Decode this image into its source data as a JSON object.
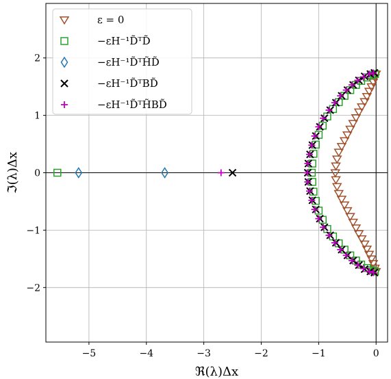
{
  "chart_data": {
    "type": "scatter",
    "title": "",
    "xlabel": "ℜ(λ)Δx",
    "ylabel": "ℑ(λ)Δx",
    "xlim": [
      -5.75,
      0.2
    ],
    "ylim": [
      -2.95,
      2.95
    ],
    "xticks": [
      -5,
      -4,
      -3,
      -2,
      -1,
      0
    ],
    "xtick_labels": [
      "−5",
      "−4",
      "−3",
      "−2",
      "−1",
      "0"
    ],
    "yticks": [
      -2,
      -1,
      0,
      1,
      2
    ],
    "ytick_labels": [
      "−2",
      "−1",
      "0",
      "1",
      "2"
    ],
    "grid": true,
    "zero_lines": true,
    "legend_position": "top-left",
    "series": [
      {
        "name": "ε = 0",
        "marker": "triangle-down",
        "color": "#a0522d",
        "points": [
          [
            0.0,
            1.72
          ],
          [
            -0.02,
            1.66
          ],
          [
            -0.05,
            1.58
          ],
          [
            -0.08,
            1.5
          ],
          [
            -0.12,
            1.42
          ],
          [
            -0.16,
            1.33
          ],
          [
            -0.2,
            1.24
          ],
          [
            -0.25,
            1.15
          ],
          [
            -0.3,
            1.06
          ],
          [
            -0.35,
            0.96
          ],
          [
            -0.4,
            0.86
          ],
          [
            -0.45,
            0.76
          ],
          [
            -0.5,
            0.66
          ],
          [
            -0.55,
            0.56
          ],
          [
            -0.6,
            0.46
          ],
          [
            -0.65,
            0.36
          ],
          [
            -0.68,
            0.24
          ],
          [
            -0.7,
            0.12
          ],
          [
            -0.71,
            0.0
          ],
          [
            -0.7,
            -0.12
          ],
          [
            -0.68,
            -0.24
          ],
          [
            -0.65,
            -0.36
          ],
          [
            -0.6,
            -0.46
          ],
          [
            -0.55,
            -0.56
          ],
          [
            -0.5,
            -0.66
          ],
          [
            -0.45,
            -0.76
          ],
          [
            -0.4,
            -0.86
          ],
          [
            -0.35,
            -0.96
          ],
          [
            -0.3,
            -1.06
          ],
          [
            -0.25,
            -1.15
          ],
          [
            -0.2,
            -1.24
          ],
          [
            -0.16,
            -1.33
          ],
          [
            -0.12,
            -1.42
          ],
          [
            -0.08,
            -1.5
          ],
          [
            -0.05,
            -1.58
          ],
          [
            -0.02,
            -1.66
          ],
          [
            0.0,
            -1.72
          ]
        ]
      },
      {
        "name": "−εH⁻¹D̃ᵀD̃",
        "marker": "square",
        "color": "#2ca02c",
        "points": [
          [
            -5.55,
            0.0
          ],
          [
            -0.02,
            1.72
          ],
          [
            -0.08,
            1.7
          ],
          [
            -0.16,
            1.66
          ],
          [
            -0.26,
            1.6
          ],
          [
            -0.35,
            1.53
          ],
          [
            -0.45,
            1.44
          ],
          [
            -0.55,
            1.34
          ],
          [
            -0.65,
            1.23
          ],
          [
            -0.75,
            1.11
          ],
          [
            -0.85,
            0.98
          ],
          [
            -0.93,
            0.82
          ],
          [
            -1.0,
            0.66
          ],
          [
            -1.05,
            0.49
          ],
          [
            -1.09,
            0.33
          ],
          [
            -1.11,
            0.16
          ],
          [
            -1.12,
            0.0
          ],
          [
            -1.11,
            -0.16
          ],
          [
            -1.09,
            -0.33
          ],
          [
            -1.05,
            -0.49
          ],
          [
            -1.0,
            -0.66
          ],
          [
            -0.93,
            -0.82
          ],
          [
            -0.85,
            -0.98
          ],
          [
            -0.75,
            -1.11
          ],
          [
            -0.65,
            -1.23
          ],
          [
            -0.55,
            -1.34
          ],
          [
            -0.45,
            -1.44
          ],
          [
            -0.35,
            -1.53
          ],
          [
            -0.26,
            -1.6
          ],
          [
            -0.16,
            -1.66
          ],
          [
            -0.08,
            -1.7
          ],
          [
            -0.02,
            -1.72
          ]
        ]
      },
      {
        "name": "−εH⁻¹D̃ᵀH̃D̃",
        "marker": "diamond",
        "color": "#1f77b4",
        "points": [
          [
            -5.18,
            0.0
          ],
          [
            -3.68,
            0.0
          ]
        ]
      },
      {
        "name": "−εH⁻¹D̃ᵀBD̃",
        "marker": "x",
        "color": "#000000",
        "points": [
          [
            -2.5,
            0.0
          ],
          [
            -0.03,
            1.74
          ],
          [
            -0.1,
            1.72
          ],
          [
            -0.2,
            1.68
          ],
          [
            -0.3,
            1.61
          ],
          [
            -0.4,
            1.53
          ],
          [
            -0.5,
            1.44
          ],
          [
            -0.6,
            1.34
          ],
          [
            -0.7,
            1.22
          ],
          [
            -0.8,
            1.09
          ],
          [
            -0.9,
            0.95
          ],
          [
            -0.98,
            0.8
          ],
          [
            -1.05,
            0.64
          ],
          [
            -1.11,
            0.48
          ],
          [
            -1.15,
            0.32
          ],
          [
            -1.18,
            0.16
          ],
          [
            -1.19,
            0.0
          ],
          [
            -1.18,
            -0.16
          ],
          [
            -1.15,
            -0.32
          ],
          [
            -1.11,
            -0.48
          ],
          [
            -1.05,
            -0.64
          ],
          [
            -0.98,
            -0.8
          ],
          [
            -0.9,
            -0.95
          ],
          [
            -0.8,
            -1.09
          ],
          [
            -0.7,
            -1.22
          ],
          [
            -0.6,
            -1.34
          ],
          [
            -0.5,
            -1.44
          ],
          [
            -0.4,
            -1.53
          ],
          [
            -0.3,
            -1.61
          ],
          [
            -0.2,
            -1.68
          ],
          [
            -0.1,
            -1.72
          ],
          [
            -0.03,
            -1.74
          ]
        ]
      },
      {
        "name": "−εH⁻¹D̃ᵀH̃BD̃",
        "marker": "plus",
        "color": "#bf00bf",
        "points": [
          [
            -2.7,
            0.0
          ],
          [
            -0.05,
            1.74
          ],
          [
            -0.12,
            1.72
          ],
          [
            -0.22,
            1.67
          ],
          [
            -0.32,
            1.61
          ],
          [
            -0.42,
            1.53
          ],
          [
            -0.52,
            1.44
          ],
          [
            -0.62,
            1.34
          ],
          [
            -0.72,
            1.22
          ],
          [
            -0.82,
            1.09
          ],
          [
            -0.92,
            0.95
          ],
          [
            -1.0,
            0.8
          ],
          [
            -1.07,
            0.64
          ],
          [
            -1.12,
            0.48
          ],
          [
            -1.16,
            0.32
          ],
          [
            -1.19,
            0.16
          ],
          [
            -1.2,
            0.0
          ],
          [
            -1.19,
            -0.16
          ],
          [
            -1.16,
            -0.32
          ],
          [
            -1.12,
            -0.48
          ],
          [
            -1.07,
            -0.64
          ],
          [
            -1.0,
            -0.8
          ],
          [
            -0.92,
            -0.95
          ],
          [
            -0.82,
            -1.09
          ],
          [
            -0.72,
            -1.22
          ],
          [
            -0.62,
            -1.34
          ],
          [
            -0.52,
            -1.44
          ],
          [
            -0.42,
            -1.53
          ],
          [
            -0.32,
            -1.61
          ],
          [
            -0.22,
            -1.67
          ],
          [
            -0.12,
            -1.72
          ],
          [
            -0.05,
            -1.74
          ]
        ]
      }
    ]
  }
}
